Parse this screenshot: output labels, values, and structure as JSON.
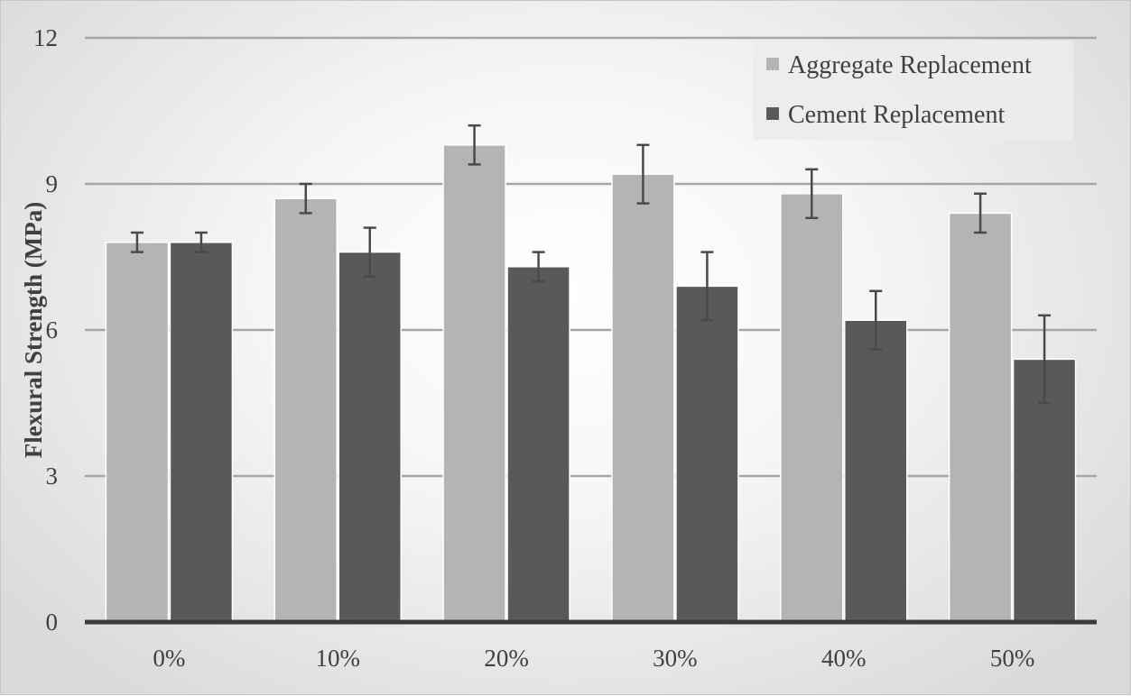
{
  "chart_data": {
    "type": "bar",
    "title": "",
    "xlabel": "",
    "ylabel": "Flexural Strength (MPa)",
    "ylim": [
      0,
      12
    ],
    "yticks": [
      0,
      3,
      6,
      9,
      12
    ],
    "grid": true,
    "legend_position": "top-right",
    "categories": [
      "0%",
      "10%",
      "20%",
      "30%",
      "40%",
      "50%"
    ],
    "series": [
      {
        "name": "Aggregate Replacement",
        "color": "#b4b4b4",
        "values": [
          7.8,
          8.7,
          9.8,
          9.2,
          8.8,
          8.4
        ],
        "error": [
          0.2,
          0.3,
          0.4,
          0.6,
          0.5,
          0.4
        ]
      },
      {
        "name": "Cement Replacement",
        "color": "#595959",
        "values": [
          7.8,
          7.6,
          7.3,
          6.9,
          6.2,
          5.4
        ],
        "error": [
          0.2,
          0.5,
          0.3,
          0.7,
          0.6,
          0.9
        ]
      }
    ]
  }
}
